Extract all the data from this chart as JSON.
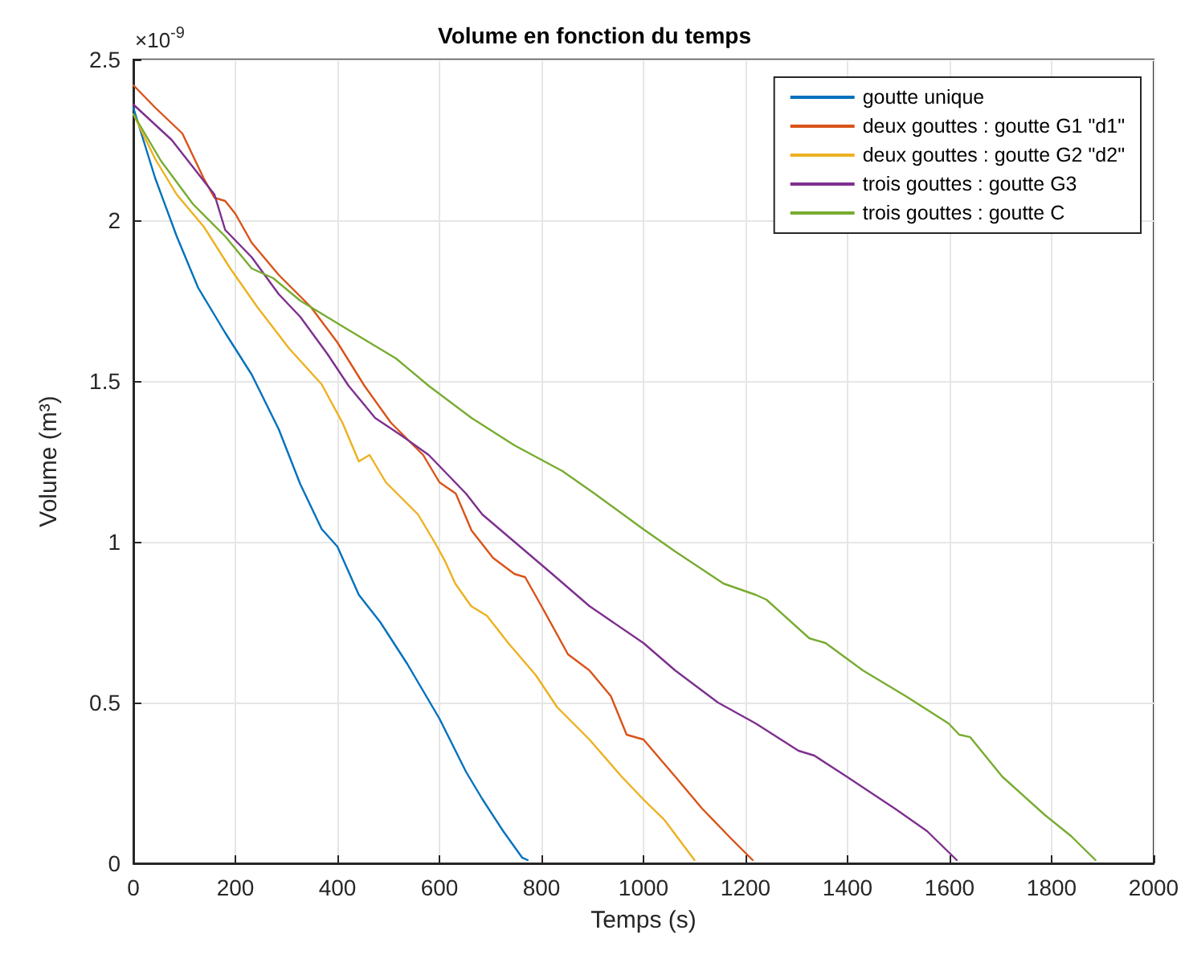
{
  "chart_data": {
    "type": "line",
    "title": "Volume en fonction du temps",
    "xlabel": "Temps (s)",
    "ylabel": "Volume (m³)",
    "annotations": [
      "×10$^{-9}$"
    ],
    "xlim": [
      0,
      2000
    ],
    "xticks": [
      0,
      200,
      400,
      600,
      800,
      1000,
      1200,
      1400,
      1600,
      1800,
      2000
    ],
    "ylim": [
      0,
      2.5
    ],
    "yticks": [
      0,
      0.5,
      1,
      1.5,
      2,
      2.5
    ],
    "grid": true,
    "legend": "top right",
    "marker": "none",
    "line_style": "solid",
    "series": [
      {
        "name": "goutte unique",
        "color": "#0072bd",
        "x": [
          0,
          43,
          85,
          127,
          180,
          232,
          285,
          327,
          369,
          400,
          442,
          484,
          537,
          600,
          652,
          684,
          725,
          762,
          773
        ],
        "values": [
          2.35,
          2.13,
          1.95,
          1.79,
          1.65,
          1.52,
          1.35,
          1.18,
          1.04,
          0.985,
          0.835,
          0.75,
          0.62,
          0.45,
          0.285,
          0.2,
          0.1,
          0.018,
          0.01
        ]
      },
      {
        "name": "deux gouttes : goutte G1 \"d1\"",
        "color": "#d95319",
        "x": [
          0,
          43,
          96,
          138,
          159,
          180,
          200,
          232,
          285,
          348,
          400,
          453,
          505,
          568,
          600,
          632,
          663,
          705,
          747,
          768,
          800,
          852,
          894,
          936,
          967,
          1000,
          1062,
          1115,
          1176,
          1214
        ],
        "values": [
          2.42,
          2.35,
          2.27,
          2.13,
          2.07,
          2.06,
          2.02,
          1.93,
          1.83,
          1.73,
          1.62,
          1.485,
          1.37,
          1.27,
          1.185,
          1.15,
          1.035,
          0.95,
          0.9,
          0.89,
          0.8,
          0.65,
          0.6,
          0.52,
          0.4,
          0.385,
          0.27,
          0.17,
          0.07,
          0.01
        ]
      },
      {
        "name": "deux gouttes : goutte G2 \"d2\"",
        "color": "#edb120",
        "x": [
          0,
          43,
          85,
          138,
          190,
          243,
          306,
          369,
          410,
          442,
          463,
          495,
          558,
          590,
          610,
          631,
          662,
          693,
          735,
          789,
          831,
          894,
          957,
          999,
          1041,
          1100
        ],
        "values": [
          2.33,
          2.19,
          2.08,
          1.98,
          1.85,
          1.73,
          1.6,
          1.49,
          1.37,
          1.25,
          1.27,
          1.185,
          1.085,
          1.0,
          0.943,
          0.87,
          0.8,
          0.77,
          0.685,
          0.585,
          0.485,
          0.385,
          0.27,
          0.2,
          0.135,
          0.01
        ]
      },
      {
        "name": "trois gouttes : goutte G3",
        "color": "#7e2f8e",
        "x": [
          0,
          75,
          159,
          180,
          232,
          285,
          327,
          380,
          422,
          474,
          526,
          579,
          652,
          684,
          747,
          821,
          894,
          1000,
          1062,
          1146,
          1220,
          1304,
          1335,
          1398,
          1493,
          1556,
          1614
        ],
        "values": [
          2.36,
          2.25,
          2.08,
          1.97,
          1.885,
          1.77,
          1.7,
          1.585,
          1.485,
          1.385,
          1.33,
          1.27,
          1.15,
          1.085,
          1.0,
          0.9,
          0.8,
          0.685,
          0.6,
          0.5,
          0.435,
          0.35,
          0.335,
          0.27,
          0.17,
          0.1,
          0.01
        ]
      },
      {
        "name": "trois gouttes : goutte C",
        "color": "#77ac30",
        "x": [
          0,
          54,
          117,
          180,
          232,
          274,
          327,
          410,
          515,
          579,
          663,
          747,
          841,
          904,
          999,
          1062,
          1157,
          1220,
          1241,
          1325,
          1357,
          1430,
          1514,
          1598,
          1619,
          1640,
          1703,
          1787,
          1838,
          1886
        ],
        "values": [
          2.33,
          2.185,
          2.05,
          1.95,
          1.85,
          1.82,
          1.75,
          1.67,
          1.57,
          1.485,
          1.385,
          1.3,
          1.22,
          1.15,
          1.04,
          0.97,
          0.87,
          0.835,
          0.82,
          0.7,
          0.685,
          0.6,
          0.52,
          0.435,
          0.4,
          0.393,
          0.27,
          0.15,
          0.085,
          0.01
        ]
      }
    ]
  }
}
